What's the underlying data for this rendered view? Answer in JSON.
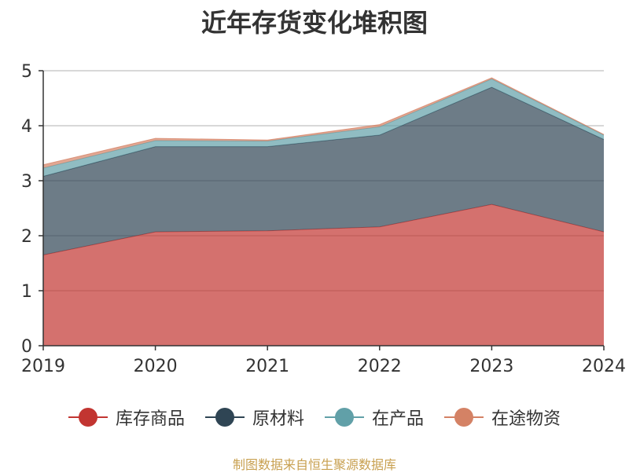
{
  "chart_data": {
    "type": "area",
    "stacked": true,
    "title": "近年存货变化堆积图",
    "categories": [
      "2019",
      "2020",
      "2021",
      "2022",
      "2023",
      "2024"
    ],
    "ylim": [
      0,
      5
    ],
    "yticks": [
      0,
      1,
      2,
      3,
      4,
      5
    ],
    "grid": true,
    "legend_position": "bottom",
    "series": [
      {
        "name": "库存商品",
        "color": "#c23531",
        "values": [
          1.65,
          2.07,
          2.09,
          2.16,
          2.57,
          2.07
        ]
      },
      {
        "name": "原材料",
        "color": "#2f4554",
        "values": [
          1.43,
          1.55,
          1.53,
          1.67,
          2.13,
          1.68
        ]
      },
      {
        "name": "在产品",
        "color": "#61a0a8",
        "values": [
          0.15,
          0.11,
          0.1,
          0.15,
          0.15,
          0.08
        ]
      },
      {
        "name": "在途物资",
        "color": "#d48265",
        "values": [
          0.06,
          0.04,
          0.02,
          0.04,
          0.02,
          0.01
        ]
      }
    ]
  },
  "footer": {
    "source": "制图数据来自恒生聚源数据库"
  }
}
